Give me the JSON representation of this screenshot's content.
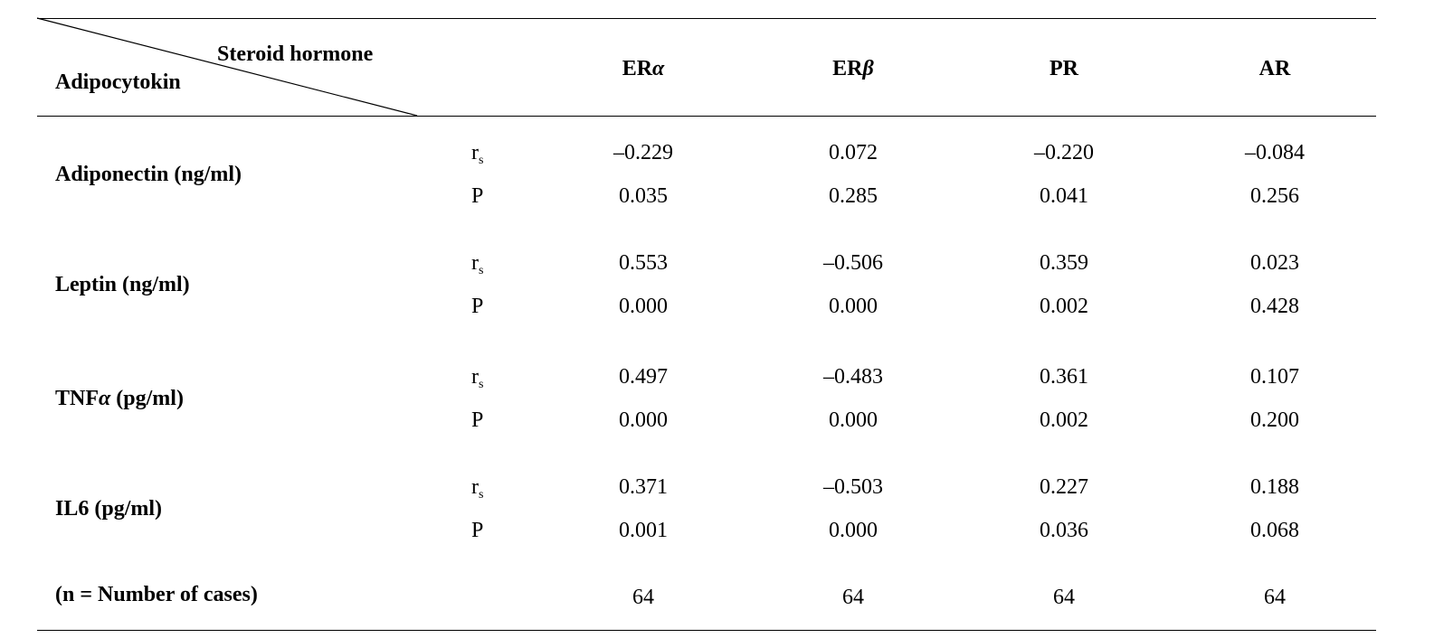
{
  "header": {
    "steroid_label": "Steroid hormone",
    "adipocytokin_label": "Adipocytokin",
    "columns": [
      {
        "prefix": "ER",
        "greek": "α"
      },
      {
        "prefix": "ER",
        "greek": "β"
      },
      {
        "prefix": "PR",
        "greek": ""
      },
      {
        "prefix": "AR",
        "greek": ""
      }
    ]
  },
  "stat_labels": {
    "rs_base": "r",
    "rs_sub": "s",
    "p": "P"
  },
  "rows": [
    {
      "label_pre": "Adiponectin (ng/ml)",
      "label_greek": "",
      "label_post": "",
      "rs": [
        "–0.229",
        "0.072",
        "–0.220",
        "–0.084"
      ],
      "p": [
        "0.035",
        "0.285",
        "0.041",
        "0.256"
      ]
    },
    {
      "label_pre": "Leptin (ng/ml)",
      "label_greek": "",
      "label_post": "",
      "rs": [
        "0.553",
        "–0.506",
        "0.359",
        "0.023"
      ],
      "p": [
        "0.000",
        "0.000",
        "0.002",
        "0.428"
      ]
    },
    {
      "label_pre": "TNF",
      "label_greek": "α",
      "label_post": " (pg/ml)",
      "rs": [
        "0.497",
        "–0.483",
        "0.361",
        "0.107"
      ],
      "p": [
        "0.000",
        "0.000",
        "0.002",
        "0.200"
      ]
    },
    {
      "label_pre": "IL6 (pg/ml)",
      "label_greek": "",
      "label_post": "",
      "rs": [
        "0.371",
        "–0.503",
        "0.227",
        "0.188"
      ],
      "p": [
        "0.001",
        "0.000",
        "0.036",
        "0.068"
      ]
    }
  ],
  "footer": {
    "label": "(n = Number of cases)",
    "values": [
      "64",
      "64",
      "64",
      "64"
    ]
  }
}
